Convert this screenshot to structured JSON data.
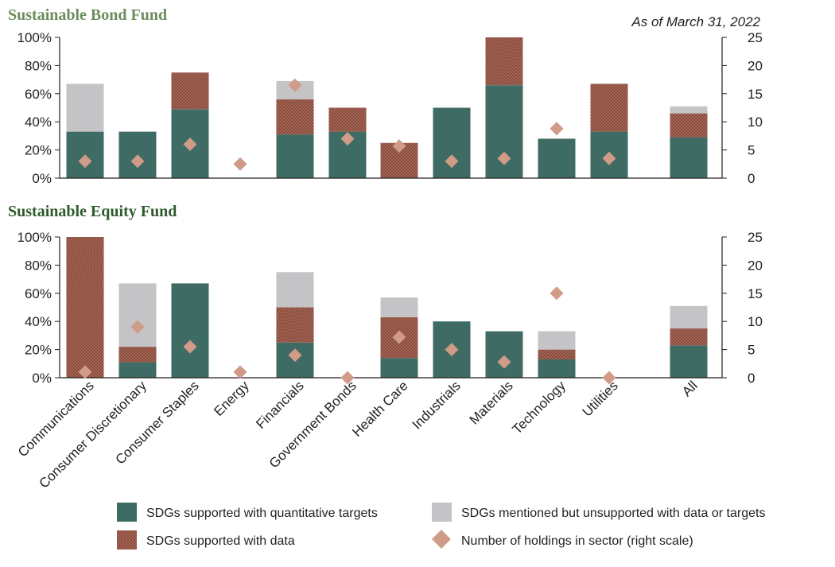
{
  "chart_data": [
    {
      "type": "bar",
      "stacked": true,
      "title": "Sustainable Bond Fund",
      "title_color": "#6c8d5d",
      "as_of": "As of March 31, 2022",
      "categories": [
        "Communications",
        "Consumer Discretionary",
        "Consumer Staples",
        "Energy",
        "Financials",
        "Government Bonds",
        "Health Care",
        "Industrials",
        "Materials",
        "Technology",
        "Utilities",
        "All"
      ],
      "series": [
        {
          "name": "SDGs supported with quantitative targets",
          "values": [
            33,
            33,
            49,
            0,
            31,
            33,
            0,
            50,
            66,
            28,
            33,
            29
          ]
        },
        {
          "name": "SDGs supported with data",
          "values": [
            0,
            0,
            26,
            0,
            25,
            17,
            25,
            0,
            34,
            0,
            34,
            17
          ]
        },
        {
          "name": "SDGs mentioned but unsupported with data or targets",
          "values": [
            34,
            0,
            0,
            0,
            13,
            0,
            0,
            0,
            0,
            0,
            0,
            5
          ]
        }
      ],
      "holdings": [
        3,
        3,
        6,
        2.5,
        16.5,
        7,
        5.7,
        3,
        3.5,
        8.8,
        3.5,
        null
      ],
      "ylim": [
        0,
        100
      ],
      "y2lim": [
        0,
        25
      ],
      "yticks": [
        "0%",
        "20%",
        "40%",
        "60%",
        "80%",
        "100%"
      ],
      "y2ticks": [
        "0",
        "5",
        "10",
        "15",
        "20",
        "25"
      ]
    },
    {
      "type": "bar",
      "stacked": true,
      "title": "Sustainable Equity Fund",
      "title_color": "#2f5b2c",
      "categories": [
        "Communications",
        "Consumer Discretionary",
        "Consumer Staples",
        "Energy",
        "Financials",
        "Government Bonds",
        "Health Care",
        "Industrials",
        "Materials",
        "Technology",
        "Utilities",
        "All"
      ],
      "series": [
        {
          "name": "SDGs supported with quantitative targets",
          "values": [
            0,
            11,
            67,
            0,
            25,
            0,
            14,
            40,
            33,
            13,
            0,
            23
          ]
        },
        {
          "name": "SDGs supported with data",
          "values": [
            100,
            11,
            0,
            0,
            25,
            0,
            29,
            0,
            0,
            7,
            0,
            12
          ]
        },
        {
          "name": "SDGs mentioned but unsupported with data or targets",
          "values": [
            0,
            45,
            0,
            0,
            25,
            0,
            14,
            0,
            0,
            13,
            0,
            16
          ]
        }
      ],
      "holdings": [
        1,
        9,
        5.5,
        1,
        4,
        0,
        7.2,
        5,
        2.8,
        15,
        0,
        null
      ],
      "ylim": [
        0,
        100
      ],
      "y2lim": [
        0,
        25
      ],
      "yticks": [
        "0%",
        "20%",
        "40%",
        "60%",
        "80%",
        "100%"
      ],
      "y2ticks": [
        "0",
        "5",
        "10",
        "15",
        "20",
        "25"
      ]
    }
  ],
  "legend": [
    {
      "label": "SDGs supported with quantitative targets",
      "kind": "solid"
    },
    {
      "label": "SDGs mentioned but unsupported with data or targets",
      "kind": "gray"
    },
    {
      "label": "SDGs supported with data",
      "kind": "dotted"
    },
    {
      "label": "Number of holdings in sector (right scale)",
      "kind": "diamond"
    }
  ],
  "colors": {
    "quant": "#3e6b63",
    "data": "#8a4b3c",
    "data_dot": "#c48e7d",
    "gray": "#c4c4c6",
    "diamond": "#d09b87",
    "axis": "#231f20"
  }
}
